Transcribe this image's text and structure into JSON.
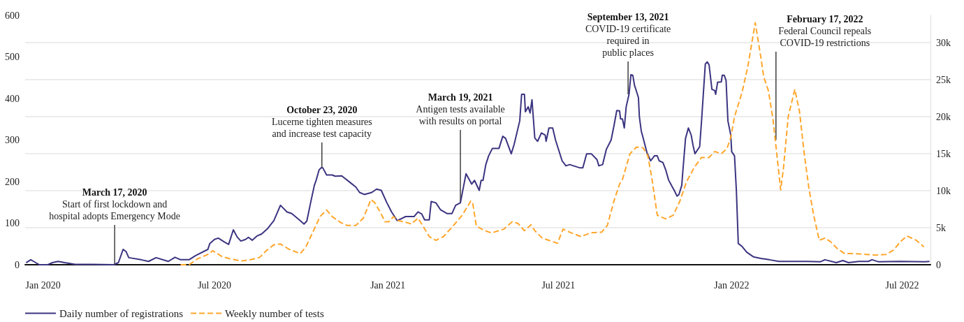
{
  "chart_data": {
    "type": "line",
    "marker": "none",
    "grid": "y",
    "legend": "bottom",
    "xlim": [
      "2019-12-13",
      "2022-07-31"
    ],
    "xticks": [
      {
        "value": "2020-01-01",
        "label": "Jan 2020"
      },
      {
        "value": "2020-07-01",
        "label": "Jul 2020"
      },
      {
        "value": "2021-01-01",
        "label": "Jan 2021"
      },
      {
        "value": "2021-07-01",
        "label": "Jul 2021"
      },
      {
        "value": "2022-01-01",
        "label": "Jan 2022"
      },
      {
        "value": "2022-07-01",
        "label": "Jul 2022"
      }
    ],
    "ylim": [
      0,
      600
    ],
    "yticks": [
      0,
      100,
      200,
      300,
      400,
      500,
      600
    ],
    "y2lim": [
      0,
      33700
    ],
    "y2ticks": [
      0,
      {
        "value": 5000,
        "label": "5k"
      },
      {
        "value": 10000,
        "label": "10k"
      },
      {
        "value": 15000,
        "label": "15k"
      },
      {
        "value": 20000,
        "label": "20k"
      },
      {
        "value": 25000,
        "label": "25k"
      },
      {
        "value": 30000,
        "label": "30k"
      }
    ],
    "annotations": [
      {
        "text": "March 17, 2020\nStart of first lockdown and\nhospital adopts Emergency Mode",
        "x": "2020-03-17",
        "y": 0
      },
      {
        "text": "October 23, 2020\nLucerne tighten measures\nand increase test capacity",
        "x": "2020-10-23",
        "y": 233
      },
      {
        "text": "March 19, 2021\nAntigen tests available\nwith results on portal",
        "x": "2021-03-19",
        "y": 149
      },
      {
        "text": "September 13, 2021\nCOVID-19 certificate\nrequired in\npublic places",
        "x": "2021-09-13",
        "y": 410
      },
      {
        "text": "February 17, 2022\nFederal Council repeals\nCOVID-19 restrictions",
        "x": "2022-02-17",
        "y": 300
      }
    ],
    "series": [
      {
        "name": "Daily number of registrations",
        "color": "#3b3480",
        "line_style": "solid",
        "x": [
          "2019-12-14",
          "2019-12-19",
          "2019-12-22",
          "2019-12-28",
          "2020-01-06",
          "2020-01-11",
          "2020-01-17",
          "2020-01-24",
          "2020-02-04",
          "2020-02-23",
          "2020-03-16",
          "2020-03-21",
          "2020-03-26",
          "2020-03-29",
          "2020-04-01",
          "2020-04-14",
          "2020-04-22",
          "2020-04-30",
          "2020-05-13",
          "2020-05-20",
          "2020-05-26",
          "2020-06-04",
          "2020-06-11",
          "2020-06-24",
          "2020-06-26",
          "2020-07-01",
          "2020-07-05",
          "2020-07-12",
          "2020-07-16",
          "2020-07-21",
          "2020-07-25",
          "2020-07-29",
          "2020-08-03",
          "2020-08-06",
          "2020-08-10",
          "2020-08-15",
          "2020-08-20",
          "2020-08-26",
          "2020-09-02",
          "2020-09-09",
          "2020-09-16",
          "2020-09-21",
          "2020-09-29",
          "2020-10-04",
          "2020-10-07",
          "2020-10-11",
          "2020-10-15",
          "2020-10-17",
          "2020-10-20",
          "2020-10-22",
          "2020-10-24",
          "2020-10-28",
          "2020-11-03",
          "2020-11-06",
          "2020-11-13",
          "2020-11-23",
          "2020-11-28",
          "2020-12-02",
          "2020-12-07",
          "2020-12-15",
          "2020-12-20",
          "2020-12-25",
          "2020-12-31",
          "2021-01-05",
          "2021-01-11",
          "2021-01-20",
          "2021-01-29",
          "2021-02-02",
          "2021-02-06",
          "2021-02-09",
          "2021-02-14",
          "2021-02-16",
          "2021-02-21",
          "2021-02-26",
          "2021-03-05",
          "2021-03-10",
          "2021-03-14",
          "2021-03-19",
          "2021-03-25",
          "2021-03-31",
          "2021-04-03",
          "2021-04-08",
          "2021-04-10",
          "2021-04-12",
          "2021-04-15",
          "2021-04-18",
          "2021-04-22",
          "2021-04-29",
          "2021-05-03",
          "2021-05-06",
          "2021-05-12",
          "2021-05-15",
          "2021-05-21",
          "2021-05-23",
          "2021-05-26",
          "2021-05-27",
          "2021-05-30",
          "2021-06-01",
          "2021-06-03",
          "2021-06-06",
          "2021-06-09",
          "2021-06-13",
          "2021-06-17",
          "2021-06-18",
          "2021-06-21",
          "2021-06-25",
          "2021-06-28",
          "2021-07-05",
          "2021-07-09",
          "2021-07-13",
          "2021-07-24",
          "2021-07-27",
          "2021-07-31",
          "2021-08-05",
          "2021-08-11",
          "2021-08-13",
          "2021-08-17",
          "2021-08-21",
          "2021-08-26",
          "2021-08-29",
          "2021-09-01",
          "2021-09-04",
          "2021-09-05",
          "2021-09-07",
          "2021-09-09",
          "2021-09-11",
          "2021-09-14",
          "2021-09-16",
          "2021-09-18",
          "2021-09-20",
          "2021-09-21",
          "2021-09-24",
          "2021-09-25",
          "2021-09-27",
          "2021-09-29",
          "2021-10-03",
          "2021-10-07",
          "2021-10-11",
          "2021-10-14",
          "2021-10-16",
          "2021-10-20",
          "2021-10-23",
          "2021-10-26",
          "2021-10-30",
          "2021-11-01",
          "2021-11-04",
          "2021-11-06",
          "2021-11-09",
          "2021-11-10",
          "2021-11-13",
          "2021-11-16",
          "2021-11-19",
          "2021-11-21",
          "2021-11-23",
          "2021-11-28",
          "2021-11-30",
          "2021-12-04",
          "2021-12-06",
          "2021-12-08",
          "2021-12-11",
          "2021-12-14",
          "2021-12-15",
          "2021-12-17",
          "2021-12-21",
          "2021-12-22",
          "2021-12-24",
          "2021-12-26",
          "2021-12-28",
          "2021-12-31",
          "2022-01-01",
          "2022-01-04",
          "2022-01-06",
          "2022-01-08",
          "2022-01-12",
          "2022-01-17",
          "2022-01-24",
          "2022-02-01",
          "2022-02-10",
          "2022-02-20",
          "2022-03-22",
          "2022-04-05",
          "2022-04-10",
          "2022-04-22",
          "2022-04-29",
          "2022-05-05",
          "2022-05-16",
          "2022-05-26",
          "2022-05-30",
          "2022-06-06",
          "2022-06-29",
          "2022-07-25",
          "2022-07-30"
        ],
        "values": [
          5,
          12,
          8,
          0,
          0,
          5,
          8,
          5,
          1,
          1,
          0,
          5,
          37,
          32,
          17,
          12,
          8,
          17,
          8,
          18,
          12,
          12,
          22,
          37,
          51,
          61,
          64,
          54,
          49,
          84,
          67,
          57,
          61,
          66,
          59,
          69,
          74,
          86,
          106,
          143,
          127,
          123,
          108,
          98,
          105,
          149,
          191,
          204,
          228,
          233,
          233,
          216,
          216,
          213,
          214,
          196,
          187,
          174,
          169,
          174,
          182,
          179,
          149,
          127,
          106,
          116,
          116,
          127,
          122,
          108,
          108,
          152,
          149,
          132,
          123,
          123,
          143,
          149,
          219,
          194,
          203,
          179,
          203,
          203,
          241,
          262,
          280,
          280,
          309,
          304,
          267,
          289,
          346,
          410,
          410,
          368,
          380,
          365,
          397,
          305,
          297,
          317,
          312,
          297,
          329,
          329,
          300,
          250,
          238,
          241,
          233,
          233,
          267,
          267,
          253,
          238,
          241,
          278,
          300,
          334,
          371,
          370,
          351,
          351,
          329,
          380,
          410,
          457,
          456,
          430,
          424,
          402,
          356,
          322,
          305,
          270,
          250,
          262,
          262,
          250,
          246,
          228,
          204,
          187,
          179,
          165,
          169,
          191,
          221,
          304,
          329,
          312,
          287,
          267,
          284,
          346,
          483,
          488,
          481,
          422,
          419,
          410,
          439,
          440,
          456,
          456,
          444,
          346,
          312,
          272,
          262,
          177,
          51,
          44,
          30,
          19,
          15,
          12,
          8,
          8,
          7,
          12,
          5,
          10,
          5,
          8,
          8,
          12,
          7,
          8,
          7,
          8
        ]
      },
      {
        "name": "Weekly number of tests",
        "color": "#ffa62b",
        "line_style": "dashed",
        "axis": "y2",
        "x": [
          "2020-05-26",
          "2020-06-04",
          "2020-06-13",
          "2020-06-26",
          "2020-06-29",
          "2020-07-09",
          "2020-07-18",
          "2020-07-29",
          "2020-08-09",
          "2020-08-18",
          "2020-08-25",
          "2020-09-02",
          "2020-09-09",
          "2020-09-18",
          "2020-09-30",
          "2020-10-06",
          "2020-10-13",
          "2020-10-21",
          "2020-10-28",
          "2020-11-03",
          "2020-11-12",
          "2020-11-19",
          "2020-11-28",
          "2020-12-06",
          "2020-12-14",
          "2020-12-18",
          "2020-12-24",
          "2020-12-29",
          "2021-01-02",
          "2021-01-07",
          "2021-01-11",
          "2021-01-21",
          "2021-01-26",
          "2021-02-02",
          "2021-02-07",
          "2021-02-14",
          "2021-02-21",
          "2021-03-01",
          "2021-03-11",
          "2021-03-21",
          "2021-03-30",
          "2021-04-01",
          "2021-04-05",
          "2021-04-14",
          "2021-04-21",
          "2021-05-04",
          "2021-05-13",
          "2021-05-19",
          "2021-05-26",
          "2021-06-02",
          "2021-06-06",
          "2021-06-14",
          "2021-06-30",
          "2021-07-06",
          "2021-07-13",
          "2021-07-25",
          "2021-08-04",
          "2021-08-16",
          "2021-08-22",
          "2021-08-29",
          "2021-09-04",
          "2021-09-07",
          "2021-09-15",
          "2021-09-22",
          "2021-09-29",
          "2021-10-04",
          "2021-10-08",
          "2021-10-14",
          "2021-10-23",
          "2021-10-31",
          "2021-11-07",
          "2021-11-14",
          "2021-11-22",
          "2021-11-30",
          "2021-12-08",
          "2021-12-14",
          "2021-12-21",
          "2021-12-27",
          "2021-12-31",
          "2022-01-04",
          "2022-01-12",
          "2022-01-18",
          "2022-01-26",
          "2022-02-01",
          "2022-02-04",
          "2022-02-09",
          "2022-02-14",
          "2022-02-22",
          "2022-02-25",
          "2022-03-02",
          "2022-03-09",
          "2022-03-14",
          "2022-03-19",
          "2022-03-24",
          "2022-03-29",
          "2022-04-04",
          "2022-04-10",
          "2022-04-16",
          "2022-04-23",
          "2022-05-01",
          "2022-05-12",
          "2022-05-23",
          "2022-06-03",
          "2022-06-14",
          "2022-06-22",
          "2022-06-29",
          "2022-07-06",
          "2022-07-16",
          "2022-07-24"
        ],
        "values": [
          0,
          0,
          800,
          1500,
          1900,
          1100,
          800,
          500,
          700,
          1000,
          1900,
          2700,
          2800,
          2100,
          1500,
          2400,
          4300,
          6500,
          7400,
          6500,
          5700,
          5300,
          5300,
          6300,
          8800,
          8400,
          7100,
          5800,
          5800,
          6500,
          6000,
          5700,
          5500,
          6300,
          5300,
          3800,
          3300,
          3800,
          5200,
          6700,
          8600,
          8400,
          5200,
          4600,
          4300,
          4800,
          5800,
          5600,
          4600,
          5400,
          4600,
          3600,
          2900,
          4800,
          4400,
          3800,
          4300,
          4400,
          5300,
          8600,
          10900,
          11500,
          15000,
          15900,
          15800,
          14700,
          11900,
          6700,
          6200,
          6700,
          8600,
          11200,
          13100,
          14500,
          14500,
          15300,
          15000,
          15700,
          17200,
          20000,
          23300,
          26700,
          32700,
          28000,
          25400,
          23500,
          19500,
          10100,
          13100,
          20000,
          23700,
          20700,
          15000,
          10300,
          6700,
          3300,
          3600,
          3100,
          2200,
          1500,
          1500,
          1400,
          1300,
          1400,
          2000,
          3100,
          3900,
          3300,
          2400
        ]
      }
    ]
  }
}
